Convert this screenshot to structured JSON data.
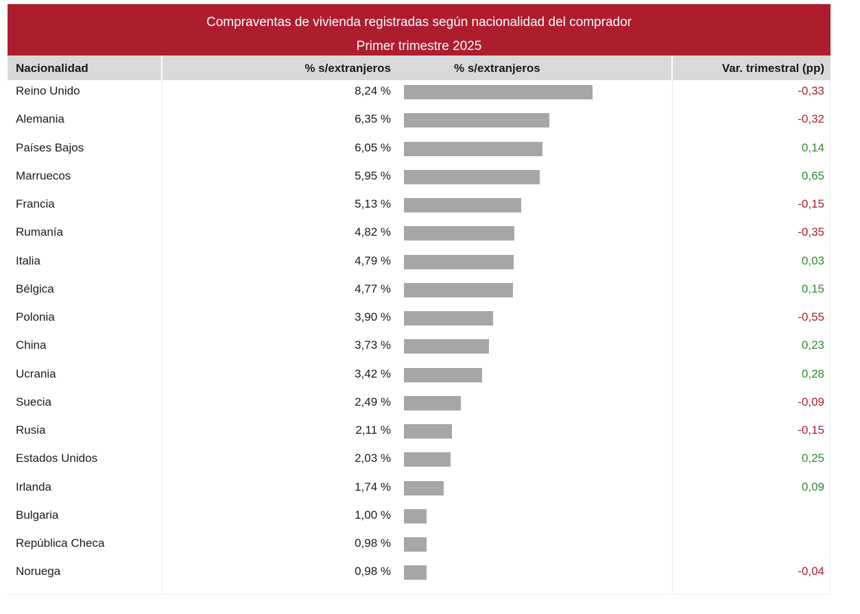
{
  "title": "Compraventas de vivienda registradas según nacionalidad del comprador",
  "subtitle": "Primer trimestre 2025",
  "columns": {
    "nationality": "Nacionalidad",
    "pct": "% s/extranjeros",
    "bar": "% s/extranjeros",
    "var": "Var. trimestral (pp)"
  },
  "colors": {
    "title_bg": "#ad1d2e",
    "header_bg": "#d9d9d9",
    "bar": "#a6a6a6",
    "negative": "#ad1d2e",
    "positive": "#2e8b2e"
  },
  "chart_data": {
    "type": "bar",
    "orientation": "horizontal",
    "xlim": [
      0,
      11.7
    ],
    "categories": [
      "Reino Unido",
      "Alemania",
      "Países Bajos",
      "Marruecos",
      "Francia",
      "Rumanía",
      "Italia",
      "Bélgica",
      "Polonia",
      "China",
      "Ucrania",
      "Suecia",
      "Rusia",
      "Estados Unidos",
      "Irlanda",
      "Bulgaria",
      "República Checa",
      "Noruega"
    ],
    "values": [
      8.24,
      6.35,
      6.05,
      5.95,
      5.13,
      4.82,
      4.79,
      4.77,
      3.9,
      3.73,
      3.42,
      2.49,
      2.11,
      2.03,
      1.74,
      1.0,
      0.98,
      0.98
    ],
    "value_labels": [
      "8,24 %",
      "6,35 %",
      "6,05 %",
      "5,95 %",
      "5,13 %",
      "4,82 %",
      "4,79 %",
      "4,77 %",
      "3,90 %",
      "3,73 %",
      "3,42 %",
      "2,49 %",
      "2,11 %",
      "2,03 %",
      "1,74 %",
      "1,00 %",
      "0,98 %",
      "0,98 %"
    ],
    "variation": [
      "-0,33",
      "-0,32",
      "0,14",
      "0,65",
      "-0,15",
      "-0,35",
      "0,03",
      "0,15",
      "-0,55",
      "0,23",
      "0,28",
      "-0,09",
      "-0,15",
      "0,25",
      "0,09",
      "",
      "",
      "-0,04"
    ]
  }
}
